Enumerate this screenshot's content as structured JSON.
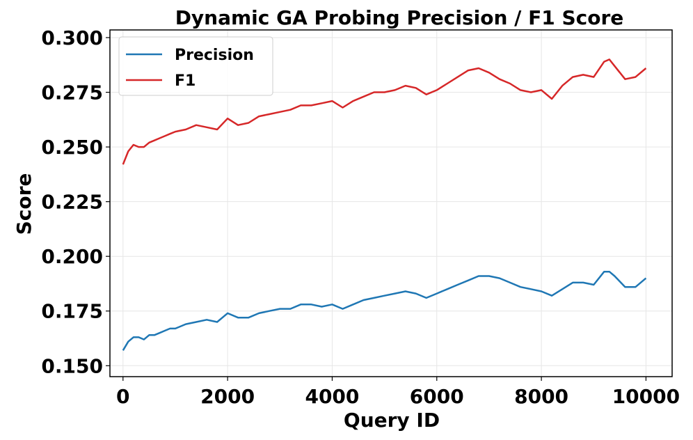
{
  "chart_data": {
    "type": "line",
    "title": "Dynamic GA Probing Precision / F1 Score",
    "xlabel": "Query ID",
    "ylabel": "Score",
    "xlim": [
      -250,
      10500
    ],
    "ylim": [
      0.145,
      0.3035
    ],
    "xticks": [
      0,
      2000,
      4000,
      6000,
      8000,
      10000
    ],
    "xtick_labels": [
      "0",
      "2000",
      "4000",
      "6000",
      "8000",
      "10000"
    ],
    "yticks": [
      0.15,
      0.175,
      0.2,
      0.225,
      0.25,
      0.275,
      0.3
    ],
    "ytick_labels": [
      "0.150",
      "0.175",
      "0.200",
      "0.225",
      "0.250",
      "0.275",
      "0.300"
    ],
    "grid": true,
    "legend_position": "top-left",
    "series": [
      {
        "name": "Precision",
        "color": "#1f77b4",
        "x": [
          0,
          100,
          200,
          300,
          400,
          500,
          600,
          700,
          800,
          900,
          1000,
          1200,
          1400,
          1600,
          1800,
          2000,
          2200,
          2400,
          2600,
          2800,
          3000,
          3200,
          3400,
          3600,
          3800,
          4000,
          4200,
          4400,
          4600,
          4800,
          5000,
          5200,
          5400,
          5600,
          5800,
          6000,
          6200,
          6400,
          6600,
          6800,
          7000,
          7200,
          7400,
          7600,
          7800,
          8000,
          8200,
          8400,
          8600,
          8800,
          9000,
          9200,
          9300,
          9400,
          9600,
          9800,
          10000
        ],
        "values": [
          0.157,
          0.161,
          0.163,
          0.163,
          0.162,
          0.164,
          0.164,
          0.165,
          0.166,
          0.167,
          0.167,
          0.169,
          0.17,
          0.171,
          0.17,
          0.174,
          0.172,
          0.172,
          0.174,
          0.175,
          0.176,
          0.176,
          0.178,
          0.178,
          0.177,
          0.178,
          0.176,
          0.178,
          0.18,
          0.181,
          0.182,
          0.183,
          0.184,
          0.183,
          0.181,
          0.183,
          0.185,
          0.187,
          0.189,
          0.191,
          0.191,
          0.19,
          0.188,
          0.186,
          0.185,
          0.184,
          0.182,
          0.185,
          0.188,
          0.188,
          0.187,
          0.193,
          0.193,
          0.191,
          0.186,
          0.186,
          0.19
        ]
      },
      {
        "name": "F1",
        "color": "#d62728",
        "x": [
          0,
          100,
          200,
          300,
          400,
          500,
          600,
          700,
          800,
          900,
          1000,
          1200,
          1400,
          1600,
          1800,
          2000,
          2200,
          2400,
          2600,
          2800,
          3000,
          3200,
          3400,
          3600,
          3800,
          4000,
          4200,
          4400,
          4600,
          4800,
          5000,
          5200,
          5400,
          5600,
          5800,
          6000,
          6200,
          6400,
          6600,
          6800,
          7000,
          7200,
          7400,
          7600,
          7800,
          8000,
          8200,
          8400,
          8600,
          8800,
          9000,
          9200,
          9300,
          9400,
          9600,
          9800,
          10000
        ],
        "values": [
          0.242,
          0.248,
          0.251,
          0.25,
          0.25,
          0.252,
          0.253,
          0.254,
          0.255,
          0.256,
          0.257,
          0.258,
          0.26,
          0.259,
          0.258,
          0.263,
          0.26,
          0.261,
          0.264,
          0.265,
          0.266,
          0.267,
          0.269,
          0.269,
          0.27,
          0.271,
          0.268,
          0.271,
          0.273,
          0.275,
          0.275,
          0.276,
          0.278,
          0.277,
          0.274,
          0.276,
          0.279,
          0.282,
          0.285,
          0.286,
          0.284,
          0.281,
          0.279,
          0.276,
          0.275,
          0.276,
          0.272,
          0.278,
          0.282,
          0.283,
          0.282,
          0.289,
          0.29,
          0.287,
          0.281,
          0.282,
          0.286
        ]
      }
    ]
  }
}
